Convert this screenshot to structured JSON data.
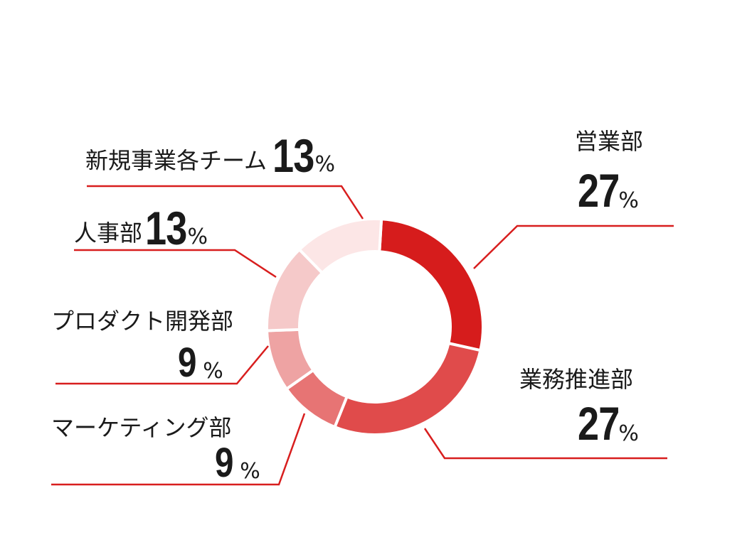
{
  "colors": {
    "leader_line": "#d81e1e",
    "ink": "#1a1a1a"
  },
  "chart_data": {
    "type": "pie",
    "donut": true,
    "unit": "%",
    "slices": [
      {
        "label": "営業部",
        "value": 27,
        "color": "#d61c1c"
      },
      {
        "label": "業務推進部",
        "value": 27,
        "color": "#e04b4b"
      },
      {
        "label": "マーケティング部",
        "value": 9,
        "color": "#e77474"
      },
      {
        "label": "プロダクト開発部",
        "value": 9,
        "color": "#eea3a3"
      },
      {
        "label": "人事部",
        "value": 13,
        "color": "#f5c9c9"
      },
      {
        "label": "新規事業各チーム",
        "value": 13,
        "color": "#fce6e6"
      }
    ]
  }
}
